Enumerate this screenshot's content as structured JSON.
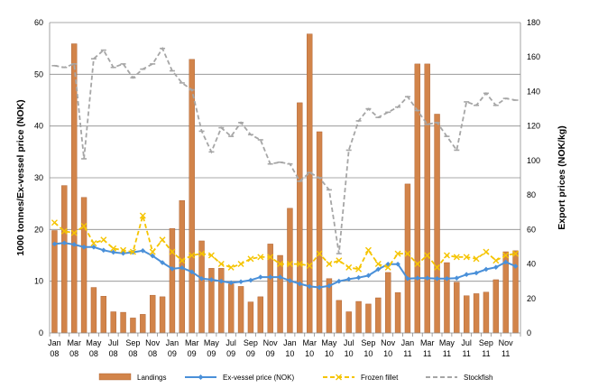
{
  "chart_data": {
    "type": "bar",
    "ylabel": "1000 tonnes/Ex-vessel price (NOK)",
    "y2label": "Export prices (NOK/kg)",
    "ylim": [
      0,
      60
    ],
    "y2lim": [
      0,
      180
    ],
    "yticks": [
      "0",
      "10",
      "20",
      "30",
      "40",
      "50",
      "60"
    ],
    "y2ticks": [
      "0",
      "20",
      "40",
      "60",
      "80",
      "100",
      "120",
      "140",
      "160",
      "180"
    ],
    "grid": "horizontal",
    "legend_position": "bottom",
    "x_tick_labels": [
      [
        "Jan",
        "08"
      ],
      [
        "Mar",
        "08"
      ],
      [
        "May",
        "08"
      ],
      [
        "Jul",
        "08"
      ],
      [
        "Sep",
        "08"
      ],
      [
        "Nov",
        "08"
      ],
      [
        "Jan",
        "09"
      ],
      [
        "Mar",
        "09"
      ],
      [
        "May",
        "09"
      ],
      [
        "Jul",
        "09"
      ],
      [
        "Sep",
        "09"
      ],
      [
        "Nov",
        "09"
      ],
      [
        "Jan",
        "10"
      ],
      [
        "Mar",
        "10"
      ],
      [
        "May",
        "10"
      ],
      [
        "Jul",
        "10"
      ],
      [
        "Sep",
        "10"
      ],
      [
        "Nov",
        "10"
      ],
      [
        "Jan",
        "11"
      ],
      [
        "Mar",
        "11"
      ],
      [
        "May",
        "11"
      ],
      [
        "Jul",
        "11"
      ],
      [
        "Sep",
        "11"
      ],
      [
        "Nov",
        "11"
      ]
    ],
    "months": [
      "2008-01",
      "2008-02",
      "2008-03",
      "2008-04",
      "2008-05",
      "2008-06",
      "2008-07",
      "2008-08",
      "2008-09",
      "2008-10",
      "2008-11",
      "2008-12",
      "2009-01",
      "2009-02",
      "2009-03",
      "2009-04",
      "2009-05",
      "2009-06",
      "2009-07",
      "2009-08",
      "2009-09",
      "2009-10",
      "2009-11",
      "2009-12",
      "2010-01",
      "2010-02",
      "2010-03",
      "2010-04",
      "2010-05",
      "2010-06",
      "2010-07",
      "2010-08",
      "2010-09",
      "2010-10",
      "2010-11",
      "2010-12",
      "2011-01",
      "2011-02",
      "2011-03",
      "2011-04",
      "2011-05",
      "2011-06",
      "2011-07",
      "2011-08",
      "2011-09",
      "2011-10",
      "2011-11",
      "2011-12"
    ],
    "series": [
      {
        "name": "Landings",
        "type": "bar",
        "axis": "left",
        "color": "#D2844A",
        "values": [
          19.8,
          28.5,
          55.9,
          26.2,
          8.8,
          7.1,
          4.1,
          4.0,
          2.9,
          3.6,
          7.3,
          7.0,
          20.2,
          25.6,
          52.9,
          17.8,
          12.5,
          12.5,
          9.5,
          9.0,
          6.0,
          7.0,
          17.2,
          15.0,
          24.1,
          44.5,
          57.8,
          38.9,
          10.5,
          6.3,
          4.1,
          6.1,
          5.6,
          6.8,
          11.7,
          7.8,
          28.8,
          52.0,
          52.0,
          42.3,
          13.6,
          9.8,
          7.2,
          7.6,
          7.9,
          10.3,
          15.7,
          15.9
        ]
      },
      {
        "name": "Ex-vessel price (NOK)",
        "type": "line",
        "axis": "left",
        "color": "#4A90D9",
        "values": [
          17.2,
          17.4,
          17.1,
          16.6,
          16.6,
          16.0,
          15.6,
          15.4,
          15.6,
          15.9,
          14.9,
          13.6,
          12.4,
          12.6,
          11.8,
          10.5,
          10.3,
          10.0,
          9.7,
          9.9,
          10.2,
          10.8,
          10.8,
          10.8,
          10.1,
          9.5,
          9.0,
          8.8,
          9.1,
          10.0,
          10.4,
          10.7,
          11.1,
          12.3,
          13.3,
          13.3,
          10.5,
          10.6,
          10.6,
          10.5,
          10.5,
          10.6,
          11.3,
          11.6,
          12.3,
          12.7,
          13.7,
          12.9
        ]
      },
      {
        "name": "Frozen fillet",
        "type": "line",
        "axis": "right",
        "dashed": true,
        "color": "#F5C400",
        "values": [
          64,
          59,
          58,
          62,
          52,
          54,
          49,
          48,
          47,
          68,
          47,
          54,
          47,
          42,
          45,
          46,
          45,
          40,
          38,
          40,
          43,
          44,
          44,
          40,
          40,
          40,
          39,
          46,
          40,
          42,
          38,
          37,
          48,
          40,
          38,
          46,
          46,
          40,
          45,
          38,
          45,
          44,
          44,
          43,
          47,
          42,
          45,
          46
        ]
      },
      {
        "name": "Stockfish",
        "type": "line",
        "axis": "right",
        "dashed": true,
        "color": "#A6A6A6",
        "values": [
          155,
          154,
          156,
          101,
          159,
          164,
          154,
          156,
          148,
          153,
          156,
          165,
          152,
          145,
          141,
          117,
          105,
          119,
          114,
          122,
          115,
          112,
          98,
          99,
          98,
          88,
          93,
          90,
          83,
          46,
          106,
          123,
          130,
          125,
          128,
          131,
          137,
          129,
          121,
          122,
          114,
          106,
          134,
          132,
          139,
          132,
          136,
          135
        ]
      }
    ]
  }
}
